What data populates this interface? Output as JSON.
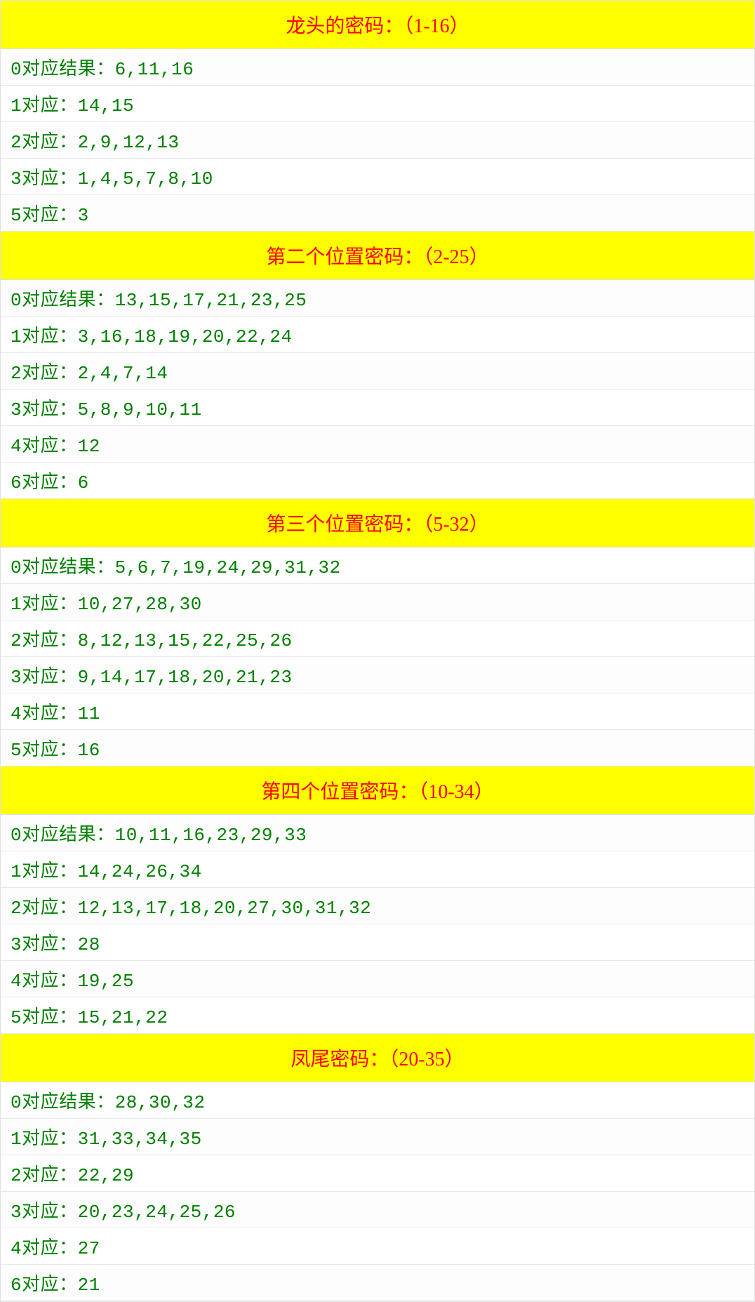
{
  "styling": {
    "header_bg": "#ffff00",
    "header_text_color": "#ff0000",
    "header_fontsize": 28,
    "row_text_color": "#008000",
    "row_fontsize": 26,
    "row_bg": "#ffffff",
    "border_color": "#e8e8e8",
    "container_width": 1076
  },
  "sections": [
    {
      "title": "龙头的密码：（1-16）",
      "rows": [
        "0对应结果：6,11,16",
        "1对应：14,15",
        "2对应：2,9,12,13",
        "3对应：1,4,5,7,8,10",
        "5对应：3"
      ]
    },
    {
      "title": "第二个位置密码：（2-25）",
      "rows": [
        "0对应结果：13,15,17,21,23,25",
        "1对应：3,16,18,19,20,22,24",
        "2对应：2,4,7,14",
        "3对应：5,8,9,10,11",
        "4对应：12",
        "6对应：6"
      ]
    },
    {
      "title": "第三个位置密码：（5-32）",
      "rows": [
        "0对应结果：5,6,7,19,24,29,31,32",
        "1对应：10,27,28,30",
        "2对应：8,12,13,15,22,25,26",
        "3对应：9,14,17,18,20,21,23",
        "4对应：11",
        "5对应：16"
      ]
    },
    {
      "title": "第四个位置密码：（10-34）",
      "rows": [
        "0对应结果：10,11,16,23,29,33",
        "1对应：14,24,26,34",
        "2对应：12,13,17,18,20,27,30,31,32",
        "3对应：28",
        "4对应：19,25",
        "5对应：15,21,22"
      ]
    },
    {
      "title": "凤尾密码：（20-35）",
      "rows": [
        "0对应结果：28,30,32",
        "1对应：31,33,34,35",
        "2对应：22,29",
        "3对应：20,23,24,25,26",
        "4对应：27",
        "6对应：21"
      ]
    }
  ]
}
